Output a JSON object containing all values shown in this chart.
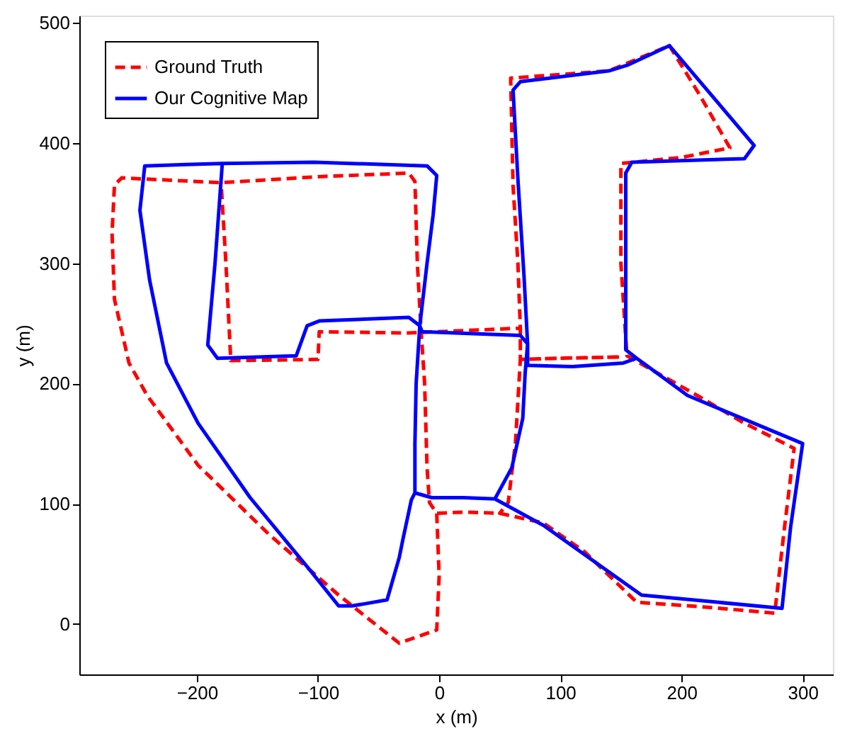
{
  "chart_data": {
    "type": "line",
    "xlabel": "x (m)",
    "ylabel": "y (m)",
    "xlim": [
      -297,
      325
    ],
    "ylim": [
      -42,
      506
    ],
    "xticks": [
      {
        "value": -200,
        "label": "−200"
      },
      {
        "value": -100,
        "label": "−100"
      },
      0,
      100,
      200,
      300
    ],
    "yticks": [
      0,
      100,
      200,
      300,
      400,
      500
    ],
    "grid": false,
    "legend": "top left",
    "series": [
      {
        "name": "Ground Truth",
        "color": "#ff0000",
        "line_style": "dashed",
        "x": [
          -2,
          0,
          -2,
          -33,
          -83,
          -141,
          -199,
          -241,
          -256,
          -268,
          -270,
          -268,
          -262,
          -180,
          -100,
          -25,
          -20,
          -18,
          -15,
          -12,
          -10,
          -8,
          -2,
          20,
          50,
          86,
          120,
          163,
          220,
          277,
          285,
          293,
          250,
          213,
          155,
          150,
          150,
          200,
          240,
          215,
          190,
          140,
          100,
          59,
          61,
          65,
          67,
          67,
          63,
          57,
          50,
          57,
          63,
          67,
          100,
          150,
          100,
          67,
          67,
          -25,
          -99,
          -100,
          -172,
          -176,
          -180
        ],
        "values": [
          92,
          40,
          -5,
          -16,
          24,
          75,
          132,
          190,
          217,
          270,
          325,
          365,
          371,
          367,
          372,
          375,
          368,
          300,
          245,
          200,
          130,
          101,
          92,
          93,
          92,
          84,
          60,
          18,
          14,
          9,
          80,
          146,
          168,
          190,
          223,
          300,
          383,
          388,
          396,
          440,
          481,
          460,
          457,
          454,
          364,
          300,
          246,
          220,
          151,
          101,
          92,
          101,
          151,
          220,
          221,
          222,
          221,
          220,
          246,
          242,
          243,
          220,
          219,
          300,
          367
        ]
      },
      {
        "name": "Our Cognitive Map",
        "color": "#0000ff",
        "line_style": "solid",
        "x": [
          -179,
          -243,
          -247,
          -239,
          -225,
          -199,
          -156,
          -106,
          -83,
          -72,
          -60,
          -43,
          -33,
          -30,
          -23,
          -20,
          -6,
          20,
          46,
          20,
          -6,
          -20,
          -20,
          -19,
          -16,
          -10,
          -5,
          -2,
          -10,
          -103,
          -179,
          -185,
          -191,
          -183,
          -118,
          -109,
          -99,
          -25,
          -16,
          -14,
          67,
          73,
          71,
          69,
          60,
          46,
          86,
          167,
          283,
          290,
          300,
          205,
          163,
          154,
          154,
          159,
          252,
          260,
          190,
          156,
          140,
          67,
          61,
          65,
          70,
          73,
          73,
          110,
          152,
          163
        ],
        "values": [
          383,
          381,
          344,
          286,
          217,
          167,
          105,
          44,
          15,
          15,
          17,
          20,
          55,
          70,
          103,
          109,
          105,
          105,
          104,
          105,
          105,
          109,
          150,
          200,
          248,
          300,
          340,
          373,
          381,
          384,
          383,
          300,
          232,
          221,
          223,
          248,
          252,
          255,
          248,
          243,
          240,
          233,
          209,
          171,
          130,
          104,
          82,
          24,
          13,
          80,
          150,
          190,
          221,
          228,
          375,
          384,
          387,
          398,
          481,
          465,
          460,
          451,
          444,
          370,
          290,
          233,
          215,
          214,
          217,
          221
        ]
      }
    ]
  }
}
